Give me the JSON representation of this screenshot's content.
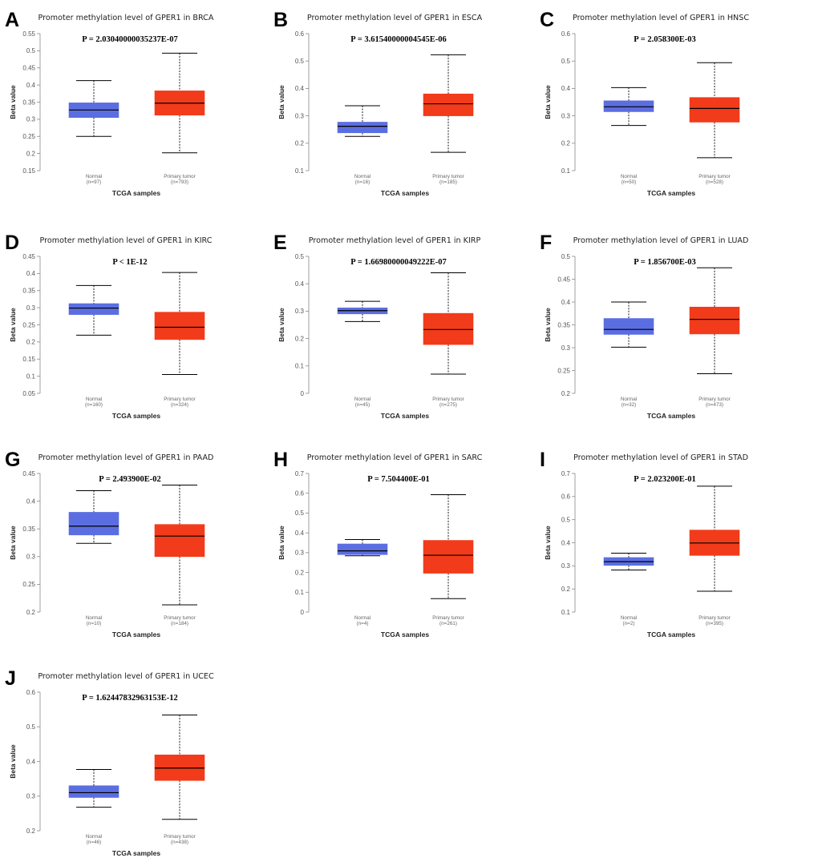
{
  "chart_data": [
    {
      "type": "box",
      "panel": "A",
      "title": "Promoter methylation level of GPER1 in BRCA",
      "pvalue": "P = 2.03040000035237E-07",
      "ylabel": "Beta value",
      "xlabel": "TCGA samples",
      "yticks": [
        "0.15",
        "0.2",
        "0.25",
        "0.3",
        "0.35",
        "0.4",
        "0.45",
        "0.5",
        "0.55"
      ],
      "ylim": [
        0.15,
        0.55
      ],
      "boxes": [
        {
          "name": "Normal",
          "n": "(n=97)",
          "color": "#5b6ee1",
          "min": 0.25,
          "q1": 0.305,
          "median": 0.327,
          "q3": 0.348,
          "max": 0.413
        },
        {
          "name": "Primary tumor",
          "n": "(n=793)",
          "color": "#f23b1a",
          "min": 0.202,
          "q1": 0.312,
          "median": 0.347,
          "q3": 0.383,
          "max": 0.493
        }
      ]
    },
    {
      "type": "box",
      "panel": "B",
      "title": "Promoter methylation level of GPER1 in ESCA",
      "pvalue": "P = 3.61540000004545E-06",
      "ylabel": "Beta value",
      "xlabel": "TCGA samples",
      "yticks": [
        "0.1",
        "0.2",
        "0.3",
        "0.4",
        "0.5",
        "0.6"
      ],
      "ylim": [
        0.1,
        0.6
      ],
      "boxes": [
        {
          "name": "Normal",
          "n": "(n=16)",
          "color": "#5b6ee1",
          "min": 0.225,
          "q1": 0.238,
          "median": 0.262,
          "q3": 0.277,
          "max": 0.337
        },
        {
          "name": "Primary tumor",
          "n": "(n=185)",
          "color": "#f23b1a",
          "min": 0.167,
          "q1": 0.3,
          "median": 0.344,
          "q3": 0.38,
          "max": 0.523
        }
      ]
    },
    {
      "type": "box",
      "panel": "C",
      "title": "Promoter methylation level of GPER1 in HNSC",
      "pvalue": "P = 2.058300E-03",
      "ylabel": "Beta value",
      "xlabel": "TCGA samples",
      "yticks": [
        "0.1",
        "0.2",
        "0.3",
        "0.4",
        "0.5",
        "0.6"
      ],
      "ylim": [
        0.1,
        0.6
      ],
      "boxes": [
        {
          "name": "Normal",
          "n": "(n=50)",
          "color": "#5b6ee1",
          "min": 0.265,
          "q1": 0.315,
          "median": 0.333,
          "q3": 0.355,
          "max": 0.403
        },
        {
          "name": "Primary tumor",
          "n": "(n=528)",
          "color": "#f23b1a",
          "min": 0.147,
          "q1": 0.277,
          "median": 0.327,
          "q3": 0.367,
          "max": 0.494
        }
      ]
    },
    {
      "type": "box",
      "panel": "D",
      "title": "Promoter methylation level of GPER1 in KIRC",
      "pvalue": "P < 1E-12",
      "ylabel": "Beta value",
      "xlabel": "TCGA samples",
      "yticks": [
        "0.05",
        "0.1",
        "0.15",
        "0.2",
        "0.25",
        "0.3",
        "0.35",
        "0.4",
        "0.45"
      ],
      "ylim": [
        0.05,
        0.45
      ],
      "boxes": [
        {
          "name": "Normal",
          "n": "(n=160)",
          "color": "#5b6ee1",
          "min": 0.22,
          "q1": 0.28,
          "median": 0.299,
          "q3": 0.312,
          "max": 0.365
        },
        {
          "name": "Primary tumor",
          "n": "(n=324)",
          "color": "#f23b1a",
          "min": 0.105,
          "q1": 0.207,
          "median": 0.243,
          "q3": 0.287,
          "max": 0.403
        }
      ]
    },
    {
      "type": "box",
      "panel": "E",
      "title": "Promoter methylation level of GPER1 in KIRP",
      "pvalue": "P = 1.66980000049222E-07",
      "ylabel": "Beta value",
      "xlabel": "TCGA samples",
      "yticks": [
        "0",
        "0.1",
        "0.2",
        "0.3",
        "0.4",
        "0.5"
      ],
      "ylim": [
        0,
        0.5
      ],
      "boxes": [
        {
          "name": "Normal",
          "n": "(n=45)",
          "color": "#5b6ee1",
          "min": 0.262,
          "q1": 0.29,
          "median": 0.302,
          "q3": 0.312,
          "max": 0.336
        },
        {
          "name": "Primary tumor",
          "n": "(n=275)",
          "color": "#f23b1a",
          "min": 0.07,
          "q1": 0.178,
          "median": 0.233,
          "q3": 0.292,
          "max": 0.44
        }
      ]
    },
    {
      "type": "box",
      "panel": "F",
      "title": "Promoter methylation level of GPER1 in LUAD",
      "pvalue": "P = 1.856700E-03",
      "ylabel": "Beta value",
      "xlabel": "TCGA samples",
      "yticks": [
        "0.2",
        "0.25",
        "0.3",
        "0.35",
        "0.4",
        "0.45",
        "0.5"
      ],
      "ylim": [
        0.2,
        0.5
      ],
      "boxes": [
        {
          "name": "Normal",
          "n": "(n=32)",
          "color": "#5b6ee1",
          "min": 0.301,
          "q1": 0.329,
          "median": 0.34,
          "q3": 0.364,
          "max": 0.4
        },
        {
          "name": "Primary tumor",
          "n": "(n=473)",
          "color": "#f23b1a",
          "min": 0.243,
          "q1": 0.33,
          "median": 0.362,
          "q3": 0.389,
          "max": 0.475
        }
      ]
    },
    {
      "type": "box",
      "panel": "G",
      "title": "Promoter methylation level of GPER1 in PAAD",
      "pvalue": "P = 2.493900E-02",
      "ylabel": "Beta value",
      "xlabel": "TCGA samples",
      "yticks": [
        "0.2",
        "0.25",
        "0.3",
        "0.35",
        "0.4",
        "0.45"
      ],
      "ylim": [
        0.2,
        0.45
      ],
      "boxes": [
        {
          "name": "Normal",
          "n": "(n=10)",
          "color": "#5b6ee1",
          "min": 0.324,
          "q1": 0.339,
          "median": 0.355,
          "q3": 0.38,
          "max": 0.419
        },
        {
          "name": "Primary tumor",
          "n": "(n=184)",
          "color": "#f23b1a",
          "min": 0.213,
          "q1": 0.3,
          "median": 0.337,
          "q3": 0.358,
          "max": 0.429
        }
      ]
    },
    {
      "type": "box",
      "panel": "H",
      "title": "Promoter methylation level of GPER1 in SARC",
      "pvalue": "P = 7.504400E-01",
      "ylabel": "Beta value",
      "xlabel": "TCGA samples",
      "yticks": [
        "0",
        "0.1",
        "0.2",
        "0.3",
        "0.4",
        "0.5",
        "0.6",
        "0.7"
      ],
      "ylim": [
        0,
        0.7
      ],
      "boxes": [
        {
          "name": "Normal",
          "n": "(n=4)",
          "color": "#5b6ee1",
          "min": 0.284,
          "q1": 0.29,
          "median": 0.309,
          "q3": 0.344,
          "max": 0.366
        },
        {
          "name": "Primary tumor",
          "n": "(n=261)",
          "color": "#f23b1a",
          "min": 0.068,
          "q1": 0.196,
          "median": 0.287,
          "q3": 0.362,
          "max": 0.593
        }
      ]
    },
    {
      "type": "box",
      "panel": "I",
      "title": "Promoter methylation level of GPER1 in STAD",
      "pvalue": "P = 2.023200E-01",
      "ylabel": "Beta value",
      "xlabel": "TCGA samples",
      "yticks": [
        "0.1",
        "0.2",
        "0.3",
        "0.4",
        "0.5",
        "0.6",
        "0.7"
      ],
      "ylim": [
        0.1,
        0.7
      ],
      "boxes": [
        {
          "name": "Normal",
          "n": "(n=2)",
          "color": "#5b6ee1",
          "min": 0.282,
          "q1": 0.302,
          "median": 0.318,
          "q3": 0.336,
          "max": 0.355
        },
        {
          "name": "Primary tumor",
          "n": "(n=395)",
          "color": "#f23b1a",
          "min": 0.19,
          "q1": 0.345,
          "median": 0.399,
          "q3": 0.455,
          "max": 0.645
        }
      ]
    },
    {
      "type": "box",
      "panel": "J",
      "title": "Promoter methylation level of GPER1 in UCEC",
      "pvalue": "P = 1.62447832963153E-12",
      "ylabel": "Beta value",
      "xlabel": "TCGA samples",
      "yticks": [
        "0.2",
        "0.3",
        "0.4",
        "0.5",
        "0.6"
      ],
      "ylim": [
        0.2,
        0.6
      ],
      "boxes": [
        {
          "name": "Normal",
          "n": "(n=46)",
          "color": "#5b6ee1",
          "min": 0.268,
          "q1": 0.296,
          "median": 0.31,
          "q3": 0.33,
          "max": 0.377
        },
        {
          "name": "Primary tumor",
          "n": "(n=438)",
          "color": "#f23b1a",
          "min": 0.233,
          "q1": 0.345,
          "median": 0.381,
          "q3": 0.419,
          "max": 0.534
        }
      ]
    }
  ]
}
